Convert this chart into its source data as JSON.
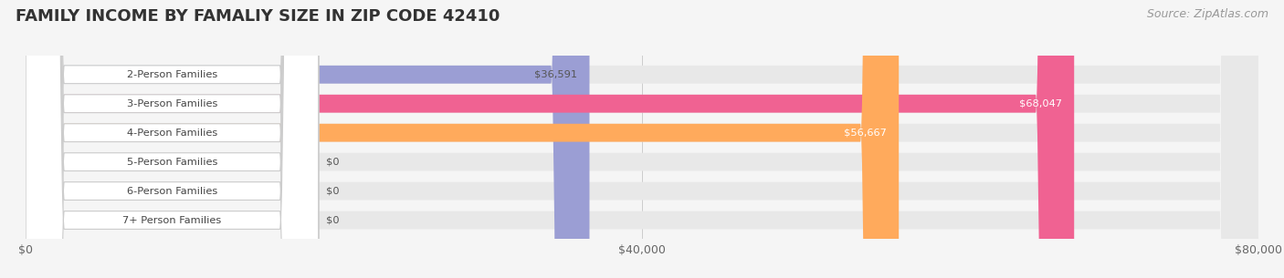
{
  "title": "FAMILY INCOME BY FAMALIY SIZE IN ZIP CODE 42410",
  "source": "Source: ZipAtlas.com",
  "categories": [
    "2-Person Families",
    "3-Person Families",
    "4-Person Families",
    "5-Person Families",
    "6-Person Families",
    "7+ Person Families"
  ],
  "values": [
    36591,
    68047,
    56667,
    0,
    0,
    0
  ],
  "bar_colors": [
    "#9B9ED4",
    "#F06292",
    "#FFAA5C",
    "#F4A9A8",
    "#9BB8D4",
    "#C9B8D4"
  ],
  "label_colors": [
    "#555555",
    "#ffffff",
    "#ffffff",
    "#555555",
    "#555555",
    "#555555"
  ],
  "xlim": [
    0,
    80000
  ],
  "xticks": [
    0,
    40000,
    80000
  ],
  "xtick_labels": [
    "$0",
    "$40,000",
    "$80,000"
  ],
  "background_color": "#f5f5f5",
  "bar_bg_color": "#e8e8e8",
  "title_fontsize": 13,
  "source_fontsize": 9,
  "bar_height": 0.62,
  "value_labels": [
    "$36,591",
    "$68,047",
    "$56,667",
    "$0",
    "$0",
    "$0"
  ]
}
